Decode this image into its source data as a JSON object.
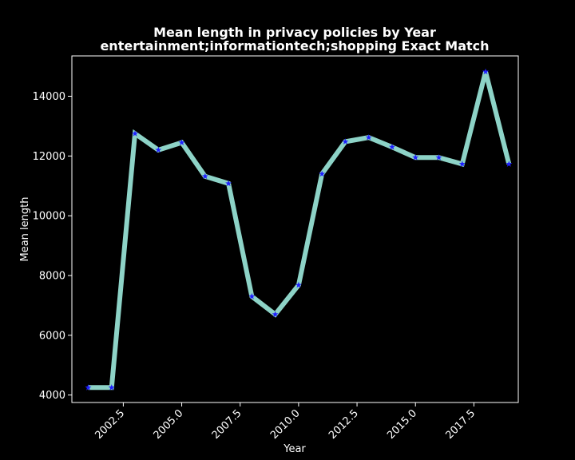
{
  "chart_data": {
    "type": "line",
    "title": "Mean length in privacy policies by Year",
    "subtitle": "entertainment;informationtech;shopping Exact Match",
    "xlabel": "Year",
    "ylabel": "Mean length",
    "xlim": [
      2000.3,
      2019.4
    ],
    "ylim": [
      3750,
      15350
    ],
    "x_ticks": [
      2002.5,
      2005.0,
      2007.5,
      2010.0,
      2012.5,
      2015.0,
      2017.5
    ],
    "x_tick_labels": [
      "2002.5",
      "2005.0",
      "2007.5",
      "2010.0",
      "2012.5",
      "2015.0",
      "2017.5"
    ],
    "y_ticks": [
      4000,
      6000,
      8000,
      10000,
      12000,
      14000
    ],
    "y_tick_labels": [
      "4000",
      "6000",
      "8000",
      "10000",
      "12000",
      "14000"
    ],
    "grid": false,
    "series": [
      {
        "x": [
          2001,
          2002,
          2003,
          2004,
          2005,
          2006,
          2007,
          2008,
          2009,
          2010,
          2011,
          2012,
          2013,
          2014,
          2015,
          2016,
          2017,
          2018,
          2019
        ],
        "values": [
          4250,
          4250,
          12750,
          12200,
          12450,
          11320,
          11080,
          7300,
          6700,
          7680,
          11400,
          12480,
          12620,
          12300,
          11950,
          11950,
          11730,
          14820,
          11730
        ],
        "line_color": "#8dd3c7",
        "marker": "star",
        "marker_color": "#1f1fff"
      }
    ]
  }
}
